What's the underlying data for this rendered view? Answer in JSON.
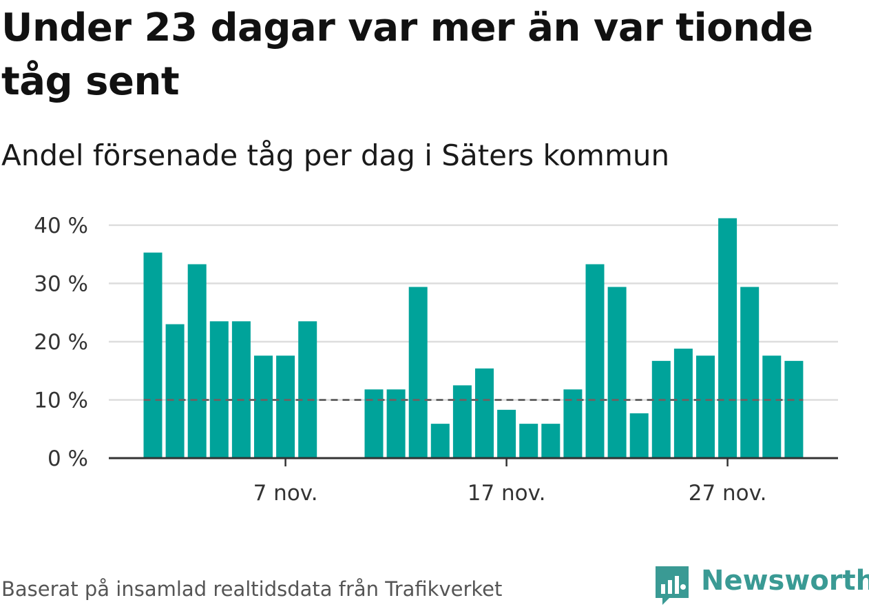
{
  "header": {
    "title": "Under 23 dagar var mer än var tionde tåg sent",
    "subtitle": "Andel försenade tåg per dag i Säters kommun"
  },
  "footer": {
    "source": "Baserat på insamlad realtidsdata från Trafikverket",
    "brand": "Newsworthy"
  },
  "colors": {
    "bar": "#00a39a",
    "grid": "#dddddd",
    "axis": "#333333",
    "reference": "#666666",
    "brand": "#3a9a94"
  },
  "chart_data": {
    "type": "bar",
    "title": "",
    "xlabel": "",
    "ylabel": "",
    "ylim": [
      0,
      42
    ],
    "yticks": [
      0,
      10,
      20,
      30,
      40
    ],
    "ytick_labels": [
      "0 %",
      "10 %",
      "20 %",
      "30 %",
      "40 %"
    ],
    "xtick_labels": [
      {
        "day": 7,
        "label": "7 nov."
      },
      {
        "day": 17,
        "label": "17 nov."
      },
      {
        "day": 27,
        "label": "27 nov."
      }
    ],
    "x": [
      1,
      2,
      3,
      4,
      5,
      6,
      7,
      8,
      9,
      10,
      11,
      12,
      13,
      14,
      15,
      16,
      17,
      18,
      19,
      20,
      21,
      22,
      23,
      24,
      25,
      26,
      27,
      28,
      29,
      30
    ],
    "values": [
      35.3,
      23,
      33.3,
      23.5,
      23.5,
      17.6,
      17.6,
      23.5,
      null,
      null,
      11.8,
      11.8,
      29.4,
      5.9,
      12.5,
      15.4,
      8.3,
      5.9,
      5.9,
      11.8,
      33.3,
      29.4,
      7.7,
      16.7,
      18.8,
      17.6,
      41.2,
      29.4,
      17.6,
      16.7
    ],
    "reference_line": 10,
    "grid": true,
    "legend": "none"
  }
}
